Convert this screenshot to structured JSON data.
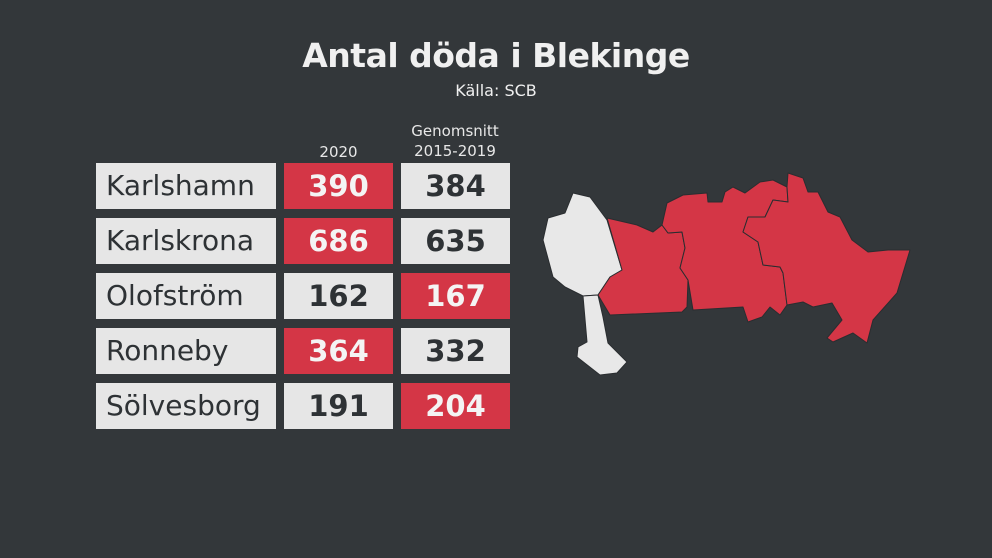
{
  "title": "Antal döda i Blekinge",
  "subtitle": "Källa: SCB",
  "chart_data": {
    "type": "table",
    "title": "Antal döda i Blekinge",
    "source": "Källa: SCB",
    "columns": [
      "2020",
      "Genomsnitt 2015-2019"
    ],
    "column_headers": {
      "c2020": "2020",
      "avg_line1": "Genomsnitt",
      "avg_line2": "2015-2019"
    },
    "rows": [
      {
        "name": "Karlshamn",
        "v2020": "390",
        "avg": "384",
        "higher": "2020"
      },
      {
        "name": "Karlskrona",
        "v2020": "686",
        "avg": "635",
        "higher": "2020"
      },
      {
        "name": "Olofström",
        "v2020": "162",
        "avg": "167",
        "higher": "avg"
      },
      {
        "name": "Ronneby",
        "v2020": "364",
        "avg": "332",
        "higher": "2020"
      },
      {
        "name": "Sölvesborg",
        "v2020": "191",
        "avg": "204",
        "higher": "avg"
      }
    ],
    "colors": {
      "higher": "#d43646",
      "lower": "#e6e6e6",
      "background": "#33373a"
    }
  }
}
